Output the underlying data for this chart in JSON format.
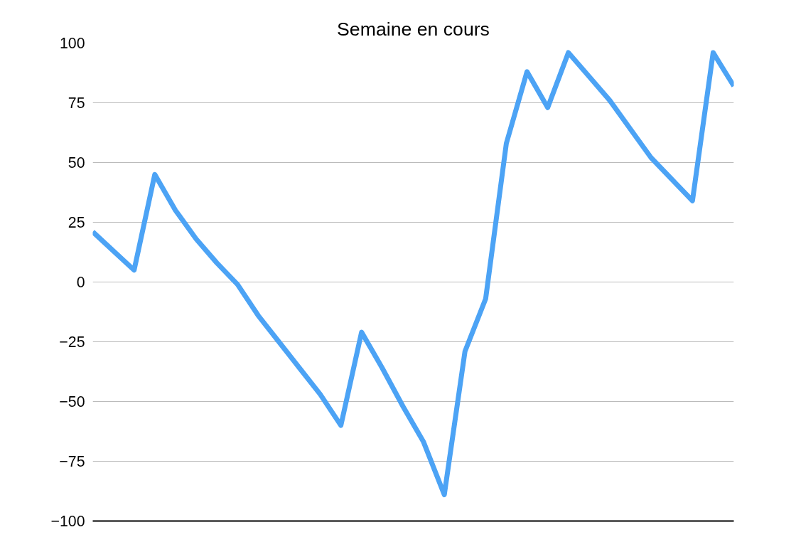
{
  "chart_data": {
    "type": "line",
    "title": "Semaine en cours",
    "categories": [
      null,
      null,
      null,
      null,
      null,
      null,
      null,
      null,
      null,
      null,
      null,
      null,
      null,
      null,
      null,
      null,
      null,
      null,
      null,
      null,
      null,
      null,
      null,
      null,
      null,
      null,
      null,
      null,
      null,
      null,
      null,
      null
    ],
    "series": [
      {
        "color": "#4ca3f5",
        "values": [
          21,
          13,
          5,
          45,
          30,
          18,
          8,
          -1,
          -14,
          -25,
          -36,
          -47,
          -60,
          -21,
          -36,
          -52,
          -67,
          -89,
          -29,
          -7,
          58,
          88,
          73,
          96,
          86,
          76,
          64,
          52,
          43,
          34,
          96,
          82
        ]
      }
    ],
    "ylim": [
      -100,
      100
    ],
    "yticks": [
      -100,
      -75,
      -50,
      -25,
      0,
      25,
      50,
      75,
      100
    ],
    "grid": "y",
    "marker": "none",
    "line_style": "solid",
    "tick_labels": "y"
  }
}
